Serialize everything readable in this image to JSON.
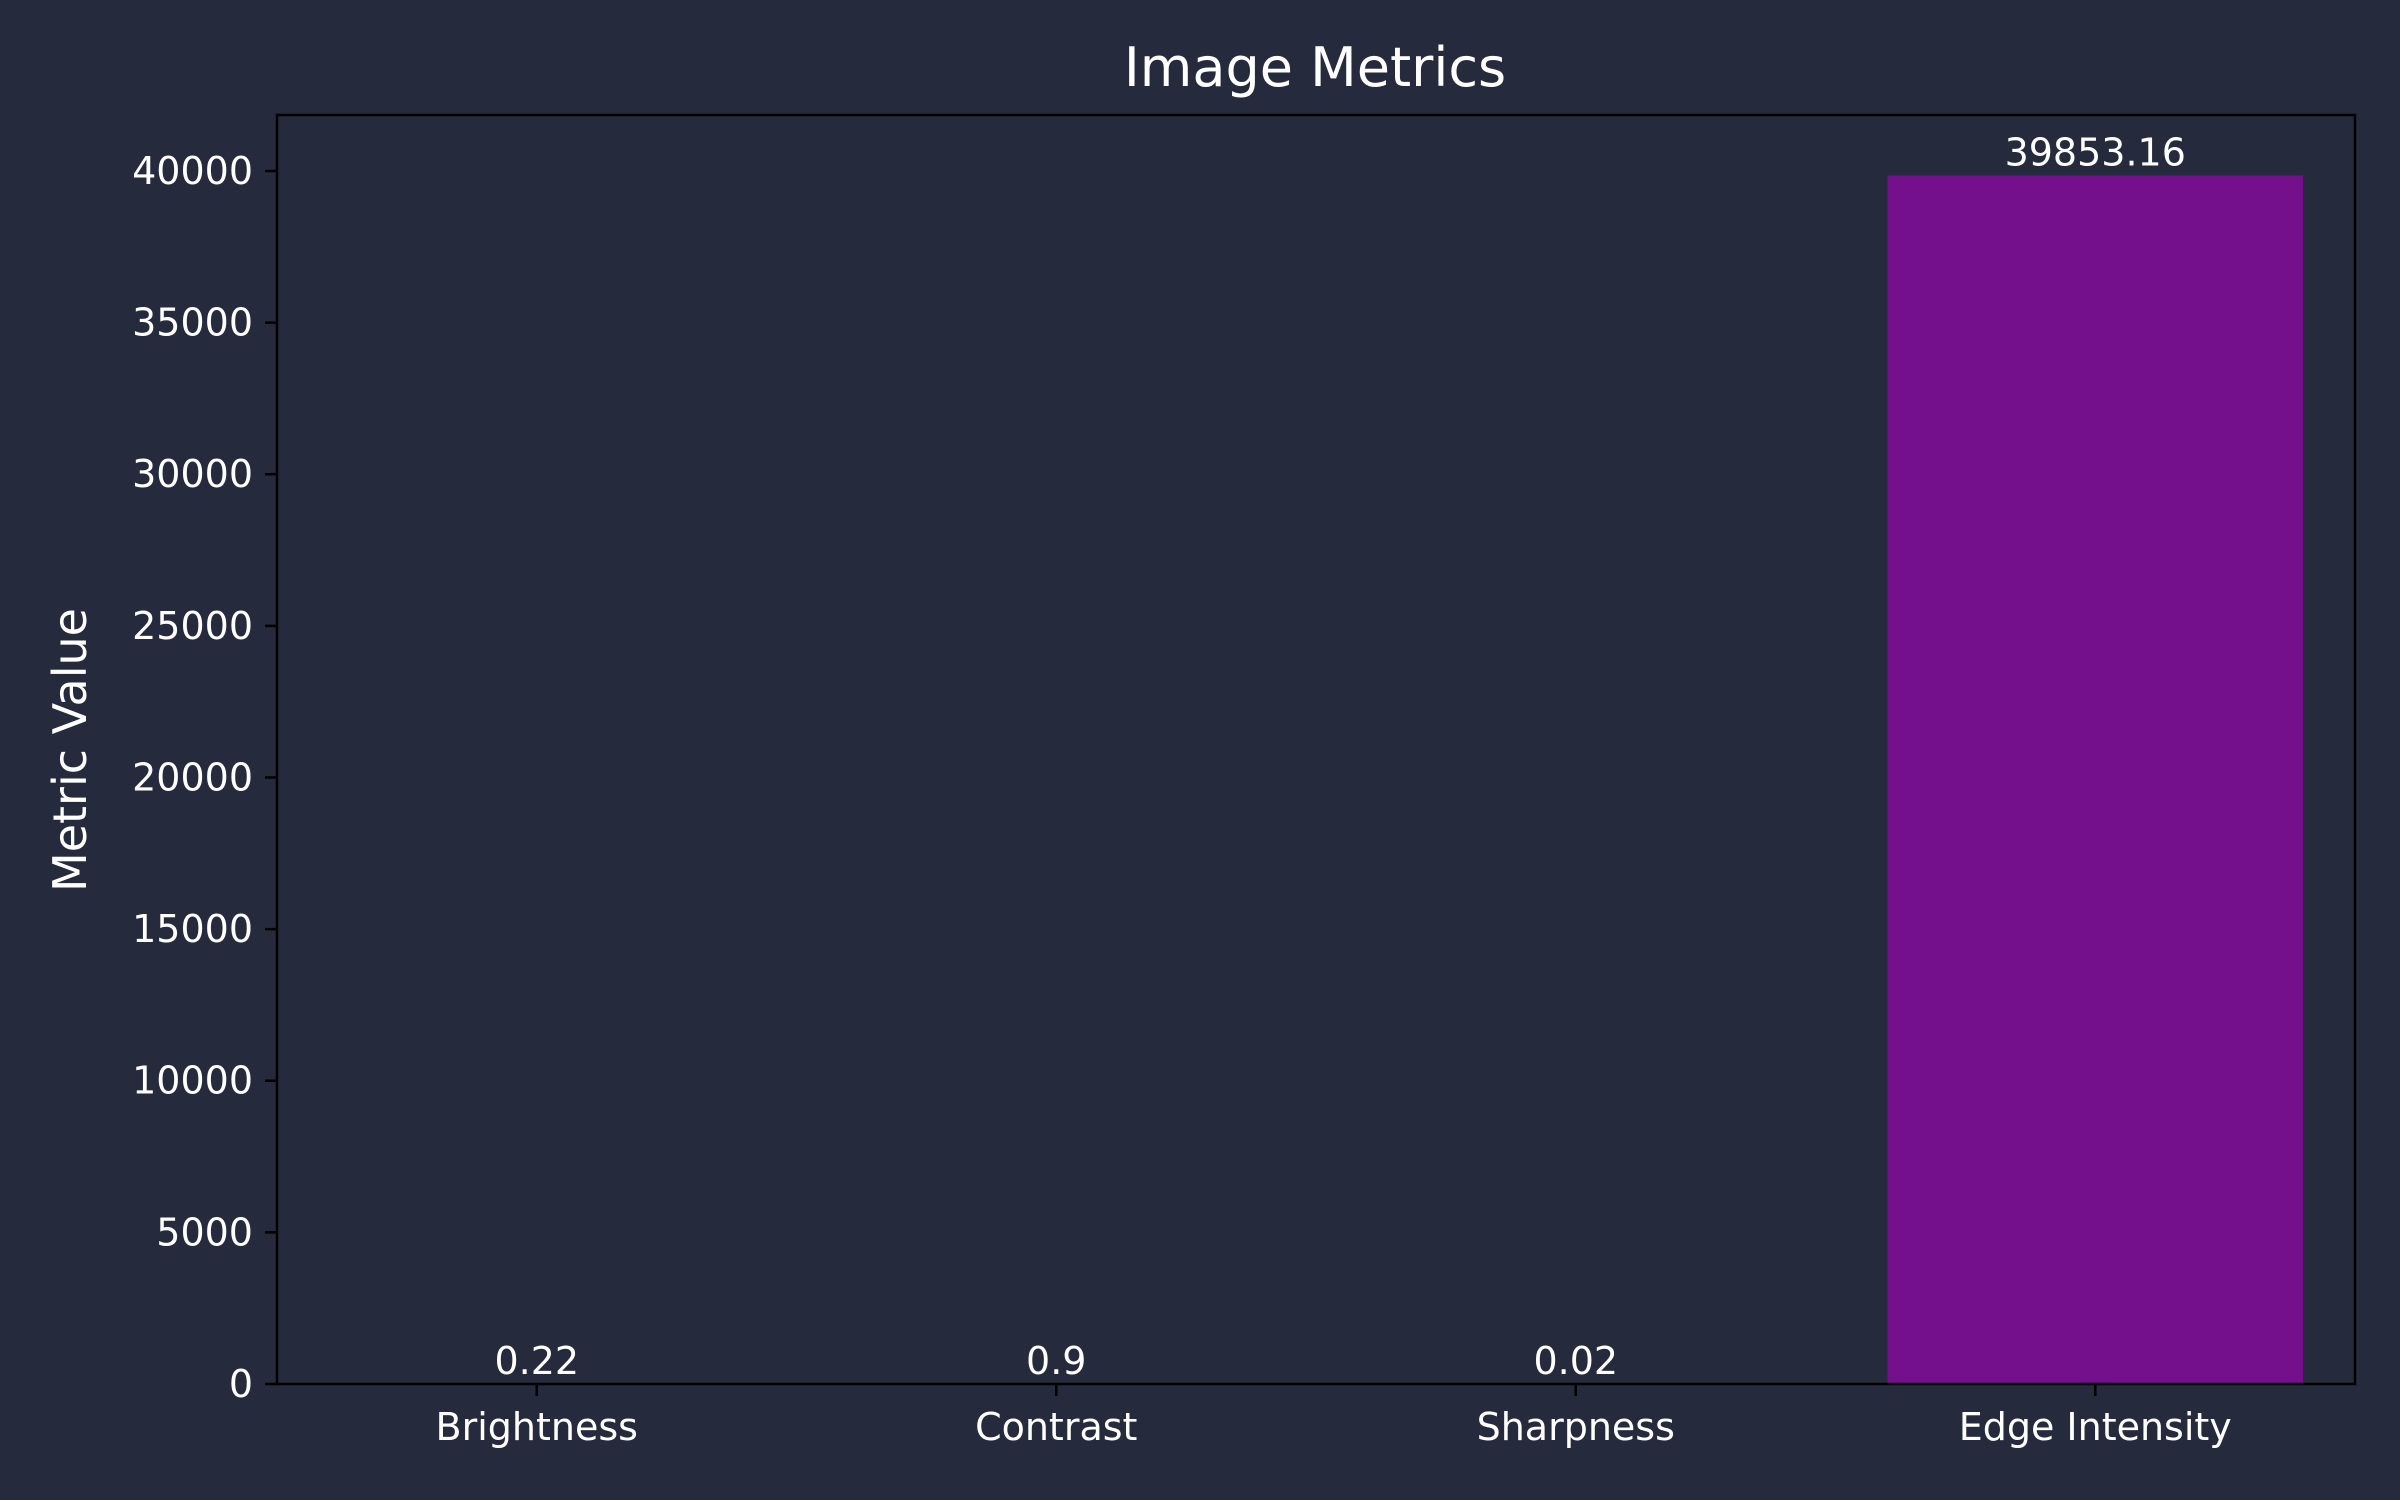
{
  "chart_data": {
    "type": "bar",
    "title": "Image Metrics",
    "xlabel": "",
    "ylabel": "Metric Value",
    "categories": [
      "Brightness",
      "Contrast",
      "Sharpness",
      "Edge Intensity"
    ],
    "values": [
      0.22,
      0.9,
      0.02,
      39853.16
    ],
    "value_labels": [
      "0.22",
      "0.9",
      "0.02",
      "39853.16"
    ],
    "yticks": [
      0,
      5000,
      10000,
      15000,
      20000,
      25000,
      30000,
      35000,
      40000
    ],
    "ylim": [
      0,
      41846
    ],
    "grid": false,
    "legend": "none",
    "colors": {
      "background": "#262a3d",
      "bar": "#74108b",
      "axis": "#000000",
      "text": "#ffffff"
    }
  }
}
